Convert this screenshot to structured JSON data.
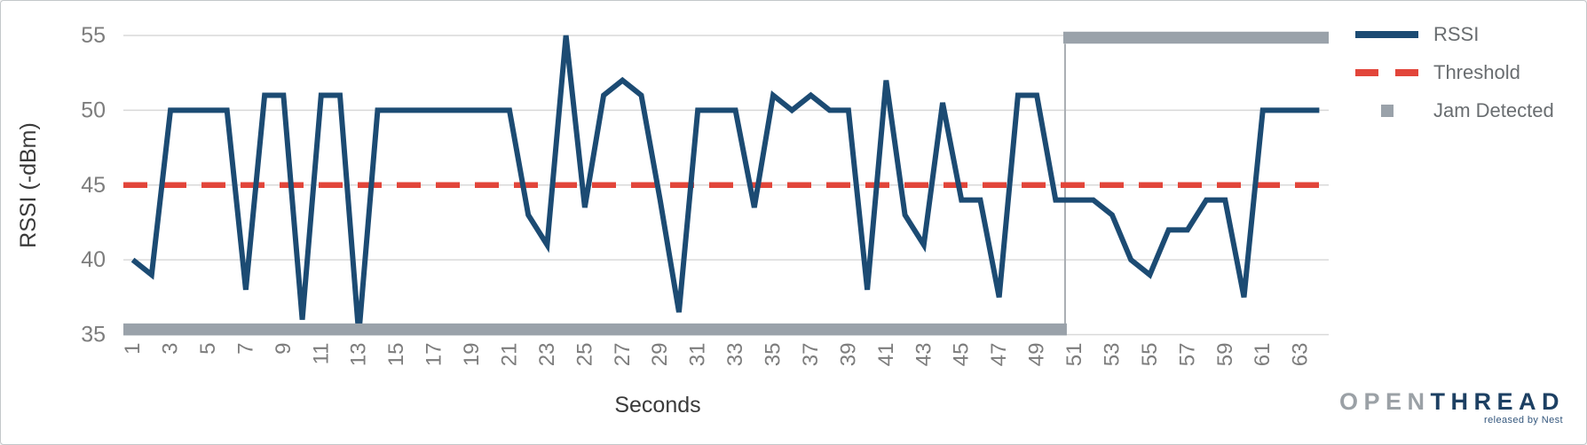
{
  "window": {
    "background": "#ffffff",
    "border_color": "#c3c7ca"
  },
  "chart_data": {
    "type": "line",
    "title": "",
    "xlabel": "Seconds",
    "ylabel": "RSSI (-dBm)",
    "x_start": 1,
    "x_end": 64,
    "x_rendered_range": [
      0.5,
      64.5
    ],
    "ylim": [
      35,
      55
    ],
    "y_ticks": [
      55,
      50,
      45,
      40,
      35
    ],
    "y_tick_labels": [
      "55",
      "50",
      "45",
      "40",
      "35"
    ],
    "x_ticks": [
      1,
      3,
      5,
      7,
      9,
      11,
      13,
      15,
      17,
      19,
      21,
      23,
      25,
      27,
      29,
      31,
      33,
      35,
      37,
      39,
      41,
      43,
      45,
      47,
      49,
      51,
      53,
      55,
      57,
      59,
      61,
      63
    ],
    "x_tick_labels": [
      "1",
      "3",
      "5",
      "7",
      "9",
      "11",
      "13",
      "15",
      "17",
      "19",
      "21",
      "23",
      "25",
      "27",
      "29",
      "31",
      "33",
      "35",
      "37",
      "39",
      "41",
      "43",
      "45",
      "47",
      "49",
      "51",
      "53",
      "55",
      "57",
      "59",
      "61",
      "63"
    ],
    "grid": "horizontal",
    "grid_color": "#d9d9d9",
    "tick_label_color": "#7d7d7d",
    "legend_position": "right",
    "series": [
      {
        "name": "RSSI",
        "type": "line",
        "color": "#1c4b73",
        "stroke_width": 6,
        "x_start": 1,
        "values": [
          40,
          39,
          50,
          50,
          50,
          50,
          38,
          51,
          51,
          36,
          51,
          51,
          35,
          50,
          50,
          50,
          50,
          50,
          50,
          50,
          50,
          43,
          41,
          55,
          43.5,
          51,
          52,
          51,
          44,
          36.5,
          50,
          50,
          50,
          43.5,
          51,
          50,
          51,
          50,
          50,
          38,
          52,
          43,
          41,
          50.5,
          44,
          44,
          37.5,
          51,
          51,
          44,
          44,
          44,
          43,
          40,
          39,
          42,
          42,
          44,
          44,
          37.5,
          50,
          50,
          50,
          50
        ]
      },
      {
        "name": "Threshold",
        "type": "dashed-line",
        "color": "#e2453a",
        "stroke_width": 6.5,
        "value": 45
      },
      {
        "name": "Jam Detected",
        "type": "step-band",
        "color": "#9aa2aa",
        "stroke_width": 13.5,
        "off_value": 35.35,
        "on_value": 54.85,
        "transition_x": 50.5,
        "connector_color": "#a8adb2",
        "segments": [
          {
            "from": 1,
            "to": 50,
            "state": "off"
          },
          {
            "from": 51,
            "to": 64,
            "state": "on"
          }
        ]
      }
    ]
  },
  "axes": {
    "xlabel": "Seconds",
    "ylabel": "RSSI (-dBm)"
  },
  "legend": {
    "items": [
      {
        "label": "RSSI",
        "swatch": "line",
        "color": "#1c4b73"
      },
      {
        "label": "Threshold",
        "swatch": "dashes",
        "color": "#e2453a"
      },
      {
        "label": "Jam Detected",
        "swatch": "square",
        "color": "#9aa2aa"
      }
    ]
  },
  "branding": {
    "logo_open": "OPEN",
    "logo_thread": "THREAD",
    "tagline": "released by Nest",
    "open_color": "#9ba1a6",
    "thread_color": "#1d4063"
  }
}
